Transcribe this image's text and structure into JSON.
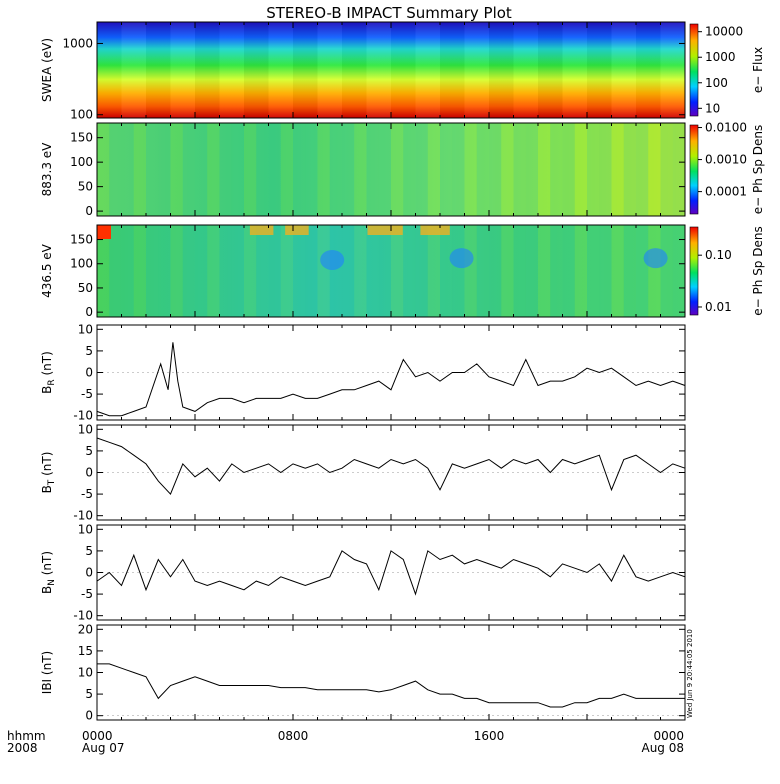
{
  "title": "STEREO-B IMPACT Summary Plot",
  "footer": {
    "time_label": "hhmm",
    "year_label": "2008",
    "date_start": "Aug 07",
    "date_end": "Aug 08",
    "stamp": "Wed Jun  9 20:44:05 2010"
  },
  "chart_data": [
    {
      "type": "heatmap",
      "id": "swea",
      "ylabel": "SWEA (eV)",
      "ylim": [
        90,
        2000
      ],
      "yscale": "log",
      "yticks": [
        {
          "value": 1000,
          "label": "1000"
        },
        {
          "value": 100,
          "label": "100"
        }
      ],
      "colorbar": {
        "label": "e− Flux",
        "scale": "log",
        "range": [
          5,
          20000
        ],
        "ticks": [
          {
            "value": 10000,
            "label": "10000"
          },
          {
            "value": 1000,
            "label": "1000"
          },
          {
            "value": 100,
            "label": "100"
          },
          {
            "value": 10,
            "label": "10"
          }
        ]
      },
      "description_levels": [
        {
          "energy_ev": 100,
          "flux": 10000
        },
        {
          "energy_ev": 200,
          "flux": 3000
        },
        {
          "energy_ev": 400,
          "flux": 800
        },
        {
          "energy_ev": 800,
          "flux": 100
        },
        {
          "energy_ev": 1500,
          "flux": 10
        }
      ]
    },
    {
      "type": "heatmap",
      "id": "pad883",
      "ylabel": "883.3 eV",
      "ylim": [
        -10,
        180
      ],
      "yticks": [
        {
          "value": 150,
          "label": "150"
        },
        {
          "value": 100,
          "label": "100"
        },
        {
          "value": 50,
          "label": "50"
        },
        {
          "value": 0,
          "label": "0"
        }
      ],
      "colorbar": {
        "label": "e− Ph Sp Dens",
        "scale": "log",
        "range": [
          2e-05,
          0.012
        ],
        "ticks": [
          {
            "value": 0.01,
            "label": "0.0100"
          },
          {
            "value": 0.001,
            "label": "0.0010"
          },
          {
            "value": 0.0001,
            "label": "0.0001"
          }
        ]
      }
    },
    {
      "type": "heatmap",
      "id": "pad436",
      "ylabel": "436.5 eV",
      "ylim": [
        -10,
        180
      ],
      "yticks": [
        {
          "value": 150,
          "label": "150"
        },
        {
          "value": 100,
          "label": "100"
        },
        {
          "value": 50,
          "label": "50"
        },
        {
          "value": 0,
          "label": "0"
        }
      ],
      "colorbar": {
        "label": "e− Ph Sp Dens",
        "scale": "log",
        "range": [
          0.007,
          0.35
        ],
        "ticks": [
          {
            "value": 0.1,
            "label": "0.10"
          },
          {
            "value": 0.01,
            "label": "0.01"
          }
        ]
      }
    },
    {
      "type": "line",
      "id": "br",
      "ylabel": "B",
      "ylabel_sub": "R",
      "ylabel_unit": "(nT)",
      "ylim": [
        -11,
        11
      ],
      "yticks": [
        -10,
        -5,
        0,
        5,
        10
      ],
      "x_hours": [
        0,
        0.5,
        1,
        1.5,
        2,
        2.6,
        2.9,
        3.1,
        3.3,
        3.5,
        4,
        4.5,
        5,
        5.5,
        6,
        6.5,
        7,
        7.5,
        8,
        8.5,
        9,
        9.5,
        10,
        10.5,
        11,
        11.5,
        12,
        12.5,
        13,
        13.5,
        14,
        14.5,
        15,
        15.5,
        16,
        16.5,
        17,
        17.5,
        18,
        18.5,
        19,
        19.5,
        20,
        20.5,
        21,
        21.5,
        22,
        22.5,
        23,
        23.5,
        24
      ],
      "y": [
        -9,
        -10,
        -10,
        -9,
        -8,
        2,
        -4,
        7,
        -2,
        -8,
        -9,
        -7,
        -6,
        -6,
        -7,
        -6,
        -6,
        -6,
        -5,
        -6,
        -6,
        -5,
        -4,
        -4,
        -3,
        -2,
        -4,
        3,
        -1,
        0,
        -2,
        0,
        0,
        2,
        -1,
        -2,
        -3,
        3,
        -3,
        -2,
        -2,
        -1,
        1,
        0,
        1,
        -1,
        -3,
        -2,
        -3,
        -2,
        -3
      ]
    },
    {
      "type": "line",
      "id": "bt",
      "ylabel": "B",
      "ylabel_sub": "T",
      "ylabel_unit": "(nT)",
      "ylim": [
        -11,
        11
      ],
      "yticks": [
        -10,
        -5,
        0,
        5,
        10
      ],
      "x_hours": [
        0,
        0.5,
        1,
        1.5,
        2,
        2.5,
        3,
        3.5,
        4,
        4.5,
        5,
        5.5,
        6,
        6.5,
        7,
        7.5,
        8,
        8.5,
        9,
        9.5,
        10,
        10.5,
        11,
        11.5,
        12,
        12.5,
        13,
        13.5,
        14,
        14.5,
        15,
        15.5,
        16,
        16.5,
        17,
        17.5,
        18,
        18.5,
        19,
        19.5,
        20,
        20.5,
        21,
        21.5,
        22,
        22.5,
        23,
        23.5,
        24
      ],
      "y": [
        8,
        7,
        6,
        4,
        2,
        -2,
        -5,
        2,
        -1,
        1,
        -2,
        2,
        0,
        1,
        2,
        0,
        2,
        1,
        2,
        0,
        1,
        3,
        2,
        1,
        3,
        2,
        3,
        1,
        -4,
        2,
        1,
        2,
        3,
        1,
        3,
        2,
        3,
        0,
        3,
        2,
        3,
        4,
        -4,
        3,
        4,
        2,
        0,
        2,
        1
      ]
    },
    {
      "type": "line",
      "id": "bn",
      "ylabel": "B",
      "ylabel_sub": "N",
      "ylabel_unit": "(nT)",
      "ylim": [
        -11,
        11
      ],
      "yticks": [
        -10,
        -5,
        0,
        5,
        10
      ],
      "x_hours": [
        0,
        0.5,
        1,
        1.5,
        2,
        2.5,
        3,
        3.5,
        4,
        4.5,
        5,
        5.5,
        6,
        6.5,
        7,
        7.5,
        8,
        8.5,
        9,
        9.5,
        10,
        10.5,
        11,
        11.5,
        12,
        12.5,
        13,
        13.5,
        14,
        14.5,
        15,
        15.5,
        16,
        16.5,
        17,
        17.5,
        18,
        18.5,
        19,
        19.5,
        20,
        20.5,
        21,
        21.5,
        22,
        22.5,
        23,
        23.5,
        24
      ],
      "y": [
        -2,
        0,
        -3,
        4,
        -4,
        3,
        -1,
        3,
        -2,
        -3,
        -2,
        -3,
        -4,
        -2,
        -3,
        -1,
        -2,
        -3,
        -2,
        -1,
        5,
        3,
        2,
        -4,
        5,
        3,
        -5,
        5,
        3,
        4,
        2,
        3,
        2,
        1,
        3,
        2,
        1,
        -1,
        2,
        1,
        0,
        2,
        -2,
        4,
        -1,
        -2,
        -1,
        0,
        -1
      ]
    },
    {
      "type": "line",
      "id": "bmag",
      "ylabel": "IBI",
      "ylabel_unit": "(nT)",
      "ylim": [
        -1,
        21
      ],
      "yticks": [
        0,
        5,
        10,
        15,
        20
      ],
      "x_hours": [
        0,
        0.5,
        1,
        1.5,
        2,
        2.5,
        3,
        3.5,
        4,
        4.5,
        5,
        5.5,
        6,
        6.5,
        7,
        7.5,
        8,
        8.5,
        9,
        9.5,
        10,
        10.5,
        11,
        11.5,
        12,
        12.5,
        13,
        13.5,
        14,
        14.5,
        15,
        15.5,
        16,
        16.5,
        17,
        17.5,
        18,
        18.5,
        19,
        19.5,
        20,
        20.5,
        21,
        21.5,
        22,
        22.5,
        23,
        23.5,
        24
      ],
      "y": [
        12,
        12,
        11,
        10,
        9,
        4,
        7,
        8,
        9,
        8,
        7,
        7,
        7,
        7,
        7,
        6.5,
        6.5,
        6.5,
        6,
        6,
        6,
        6,
        6,
        5.5,
        6,
        7,
        8,
        6,
        5,
        5,
        4,
        4,
        3,
        3,
        3,
        3,
        3,
        2,
        2,
        3,
        3,
        4,
        4,
        5,
        4,
        4,
        4,
        4,
        4
      ]
    }
  ],
  "x_axis": {
    "range_hours": [
      0,
      24
    ],
    "tick_labels": [
      {
        "hour": 0,
        "label": "0000"
      },
      {
        "hour": 8,
        "label": "0800"
      },
      {
        "hour": 16,
        "label": "1600"
      },
      {
        "hour": 24,
        "label": "0000"
      }
    ]
  }
}
